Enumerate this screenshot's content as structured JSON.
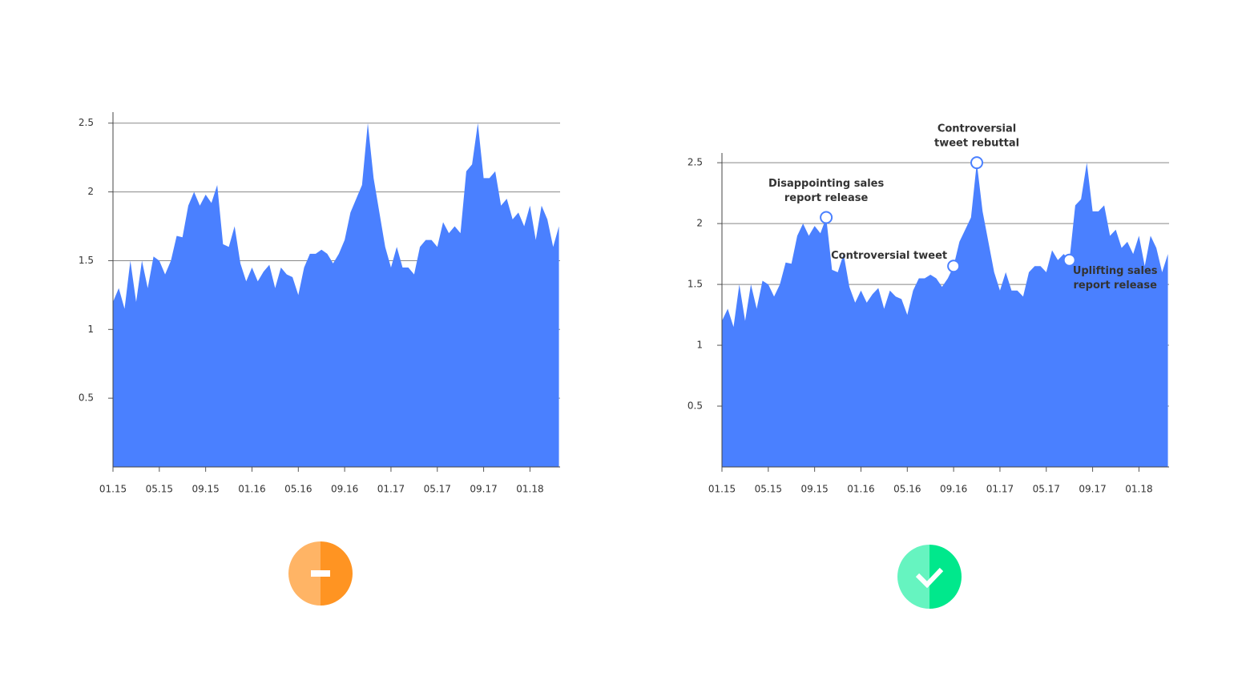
{
  "chart_data": [
    {
      "type": "area",
      "color": "#4a80ff",
      "x": [
        0,
        0.5,
        1,
        1.5,
        2,
        2.5,
        3,
        3.5,
        4,
        4.5,
        5,
        5.5,
        6,
        6.5,
        7,
        7.5,
        8,
        8.5,
        9,
        9.5,
        10,
        10.5,
        11,
        11.5,
        12,
        12.5,
        13,
        13.5,
        14,
        14.5,
        15,
        15.5,
        16,
        16.5,
        17,
        17.5,
        18,
        18.5,
        19,
        19.5,
        20,
        20.5,
        21,
        21.5,
        22,
        22.5,
        23,
        23.5,
        24,
        24.5,
        25,
        25.5,
        26,
        26.5,
        27,
        27.5,
        28,
        28.5,
        29,
        29.5,
        30,
        30.5,
        31,
        31.5,
        32,
        32.5,
        33,
        33.5,
        34,
        34.5,
        35,
        35.5,
        36,
        36.5,
        37,
        37.5,
        38,
        38.5
      ],
      "values": [
        1.2,
        1.3,
        1.15,
        1.5,
        1.2,
        1.5,
        1.3,
        1.53,
        1.5,
        1.4,
        1.5,
        1.68,
        1.67,
        1.9,
        2.0,
        1.9,
        1.98,
        1.92,
        2.05,
        1.62,
        1.6,
        1.75,
        1.48,
        1.35,
        1.45,
        1.35,
        1.42,
        1.47,
        1.3,
        1.45,
        1.4,
        1.38,
        1.25,
        1.45,
        1.55,
        1.55,
        1.58,
        1.55,
        1.48,
        1.55,
        1.65,
        1.85,
        1.95,
        2.05,
        2.5,
        2.1,
        1.85,
        1.6,
        1.45,
        1.6,
        1.45,
        1.45,
        1.4,
        1.6,
        1.65,
        1.65,
        1.6,
        1.78,
        1.7,
        1.75,
        1.7,
        2.15,
        2.2,
        2.5,
        2.1,
        2.1,
        2.15,
        1.9,
        1.95,
        1.8,
        1.85,
        1.75,
        1.9,
        1.65,
        1.9,
        1.8,
        1.6,
        1.75
      ],
      "xlim": [
        0,
        38.6
      ],
      "xticks": [
        {
          "value": 0,
          "label": "01.15"
        },
        {
          "value": 4,
          "label": "05.15"
        },
        {
          "value": 8,
          "label": "09.15"
        },
        {
          "value": 12,
          "label": "01.16"
        },
        {
          "value": 16,
          "label": "05.16"
        },
        {
          "value": 20,
          "label": "09.16"
        },
        {
          "value": 24,
          "label": "01.17"
        },
        {
          "value": 28,
          "label": "05.17"
        },
        {
          "value": 32,
          "label": "09.17"
        },
        {
          "value": 36,
          "label": "01.18"
        }
      ],
      "ylim": [
        0,
        2.58
      ],
      "yticks": [
        0.5,
        1,
        1.5,
        2,
        2.5
      ],
      "grid": true
    },
    {
      "type": "area",
      "color": "#4a80ff",
      "x": [
        0,
        0.5,
        1,
        1.5,
        2,
        2.5,
        3,
        3.5,
        4,
        4.5,
        5,
        5.5,
        6,
        6.5,
        7,
        7.5,
        8,
        8.5,
        9,
        9.5,
        10,
        10.5,
        11,
        11.5,
        12,
        12.5,
        13,
        13.5,
        14,
        14.5,
        15,
        15.5,
        16,
        16.5,
        17,
        17.5,
        18,
        18.5,
        19,
        19.5,
        20,
        20.5,
        21,
        21.5,
        22,
        22.5,
        23,
        23.5,
        24,
        24.5,
        25,
        25.5,
        26,
        26.5,
        27,
        27.5,
        28,
        28.5,
        29,
        29.5,
        30,
        30.5,
        31,
        31.5,
        32,
        32.5,
        33,
        33.5,
        34,
        34.5,
        35,
        35.5,
        36,
        36.5,
        37,
        37.5,
        38,
        38.5
      ],
      "values": [
        1.2,
        1.3,
        1.15,
        1.5,
        1.2,
        1.5,
        1.3,
        1.53,
        1.5,
        1.4,
        1.5,
        1.68,
        1.67,
        1.9,
        2.0,
        1.9,
        1.98,
        1.92,
        2.05,
        1.62,
        1.6,
        1.75,
        1.48,
        1.35,
        1.45,
        1.35,
        1.42,
        1.47,
        1.3,
        1.45,
        1.4,
        1.38,
        1.25,
        1.45,
        1.55,
        1.55,
        1.58,
        1.55,
        1.48,
        1.55,
        1.65,
        1.85,
        1.95,
        2.05,
        2.5,
        2.1,
        1.85,
        1.6,
        1.45,
        1.6,
        1.45,
        1.45,
        1.4,
        1.6,
        1.65,
        1.65,
        1.6,
        1.78,
        1.7,
        1.75,
        1.7,
        2.15,
        2.2,
        2.5,
        2.1,
        2.1,
        2.15,
        1.9,
        1.95,
        1.8,
        1.85,
        1.75,
        1.9,
        1.65,
        1.9,
        1.8,
        1.6,
        1.75
      ],
      "xlim": [
        0,
        38.6
      ],
      "xticks": [
        {
          "value": 0,
          "label": "01.15"
        },
        {
          "value": 4,
          "label": "05.15"
        },
        {
          "value": 8,
          "label": "09.15"
        },
        {
          "value": 12,
          "label": "01.16"
        },
        {
          "value": 16,
          "label": "05.16"
        },
        {
          "value": 20,
          "label": "09.16"
        },
        {
          "value": 24,
          "label": "01.17"
        },
        {
          "value": 28,
          "label": "05.17"
        },
        {
          "value": 32,
          "label": "09.17"
        },
        {
          "value": 36,
          "label": "01.18"
        }
      ],
      "ylim": [
        0,
        2.58
      ],
      "yticks": [
        0.5,
        1,
        1.5,
        2,
        2.5
      ],
      "grid": true,
      "annotations": [
        {
          "text": [
            "Disappointing sales",
            "report release"
          ],
          "x": 9,
          "y": 2.05,
          "position": "above"
        },
        {
          "text": [
            "Controversial tweet"
          ],
          "x": 20,
          "y": 1.65,
          "position": "above-left"
        },
        {
          "text": [
            "Controversial",
            "tweet rebuttal"
          ],
          "x": 22,
          "y": 2.5,
          "position": "above"
        },
        {
          "text": [
            "Uplifting sales",
            "report release"
          ],
          "x": 30,
          "y": 1.7,
          "position": "below-right"
        }
      ]
    }
  ]
}
